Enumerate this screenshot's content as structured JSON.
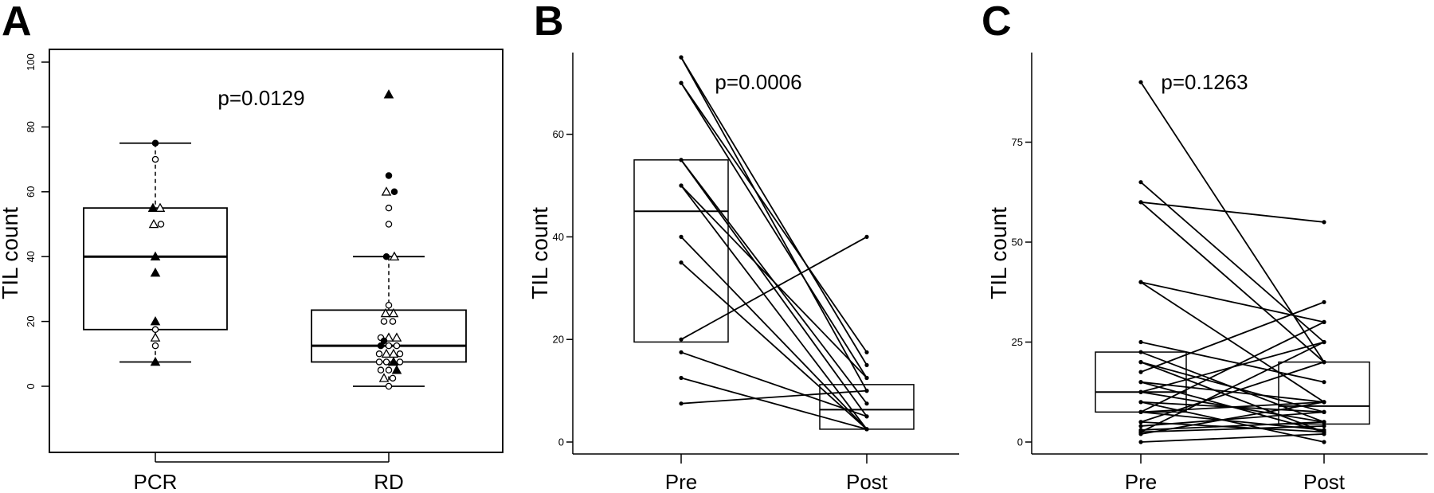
{
  "chart_data": [
    {
      "panel": "A",
      "type": "box",
      "ylabel": "TIL count",
      "ylim": [
        0,
        100
      ],
      "yticks": [
        "0",
        "20",
        "40",
        "60",
        "80",
        "100"
      ],
      "categories": [
        "PCR",
        "RD"
      ],
      "annotation": "p=0.0129",
      "boxes": [
        {
          "name": "PCR",
          "whisker_low": 7.5,
          "q1": 17.5,
          "median": 40,
          "q3": 55,
          "whisker_high": 75
        },
        {
          "name": "RD",
          "whisker_low": 0,
          "q1": 7.5,
          "median": 12.5,
          "q3": 23.5,
          "whisker_high": 40
        }
      ],
      "points": [
        {
          "cat": 0,
          "y": 75,
          "shape": "circle",
          "filled": true,
          "dx": 0
        },
        {
          "cat": 0,
          "y": 70,
          "shape": "circle",
          "filled": false,
          "dx": 0
        },
        {
          "cat": 0,
          "y": 55,
          "shape": "triangle",
          "filled": true,
          "dx": -3
        },
        {
          "cat": 0,
          "y": 55,
          "shape": "triangle",
          "filled": false,
          "dx": 6
        },
        {
          "cat": 0,
          "y": 50,
          "shape": "triangle",
          "filled": false,
          "dx": -2
        },
        {
          "cat": 0,
          "y": 50,
          "shape": "circle",
          "filled": false,
          "dx": 7
        },
        {
          "cat": 0,
          "y": 40,
          "shape": "triangle",
          "filled": true,
          "dx": 0
        },
        {
          "cat": 0,
          "y": 35,
          "shape": "triangle",
          "filled": true,
          "dx": 0
        },
        {
          "cat": 0,
          "y": 20,
          "shape": "triangle",
          "filled": true,
          "dx": 0
        },
        {
          "cat": 0,
          "y": 17.5,
          "shape": "circle",
          "filled": false,
          "dx": 0
        },
        {
          "cat": 0,
          "y": 15,
          "shape": "triangle",
          "filled": false,
          "dx": 0
        },
        {
          "cat": 0,
          "y": 12.5,
          "shape": "circle",
          "filled": false,
          "dx": 0
        },
        {
          "cat": 0,
          "y": 7.5,
          "shape": "triangle",
          "filled": true,
          "dx": 0
        },
        {
          "cat": 1,
          "y": 90,
          "shape": "triangle",
          "filled": true,
          "dx": 0
        },
        {
          "cat": 1,
          "y": 65,
          "shape": "circle",
          "filled": true,
          "dx": 0
        },
        {
          "cat": 1,
          "y": 60,
          "shape": "triangle",
          "filled": false,
          "dx": -3
        },
        {
          "cat": 1,
          "y": 60,
          "shape": "circle",
          "filled": true,
          "dx": 7
        },
        {
          "cat": 1,
          "y": 55,
          "shape": "circle",
          "filled": false,
          "dx": 0
        },
        {
          "cat": 1,
          "y": 50,
          "shape": "circle",
          "filled": false,
          "dx": 0
        },
        {
          "cat": 1,
          "y": 40,
          "shape": "circle",
          "filled": true,
          "dx": -3
        },
        {
          "cat": 1,
          "y": 40,
          "shape": "triangle",
          "filled": false,
          "dx": 7
        },
        {
          "cat": 1,
          "y": 25,
          "shape": "circle",
          "filled": false,
          "dx": 0
        },
        {
          "cat": 1,
          "y": 22.5,
          "shape": "triangle",
          "filled": false,
          "dx": -4
        },
        {
          "cat": 1,
          "y": 22.5,
          "shape": "triangle",
          "filled": false,
          "dx": 6
        },
        {
          "cat": 1,
          "y": 20,
          "shape": "circle",
          "filled": false,
          "dx": -6
        },
        {
          "cat": 1,
          "y": 20,
          "shape": "circle",
          "filled": false,
          "dx": 5
        },
        {
          "cat": 1,
          "y": 15,
          "shape": "circle",
          "filled": false,
          "dx": -10
        },
        {
          "cat": 1,
          "y": 15,
          "shape": "triangle",
          "filled": false,
          "dx": 0
        },
        {
          "cat": 1,
          "y": 15,
          "shape": "triangle",
          "filled": false,
          "dx": 10
        },
        {
          "cat": 1,
          "y": 14,
          "shape": "circle",
          "filled": true,
          "dx": -6
        },
        {
          "cat": 1,
          "y": 12.5,
          "shape": "circle",
          "filled": true,
          "dx": -10
        },
        {
          "cat": 1,
          "y": 12.5,
          "shape": "circle",
          "filled": false,
          "dx": 0
        },
        {
          "cat": 1,
          "y": 12.5,
          "shape": "circle",
          "filled": false,
          "dx": 10
        },
        {
          "cat": 1,
          "y": 10,
          "shape": "circle",
          "filled": false,
          "dx": -12
        },
        {
          "cat": 1,
          "y": 10,
          "shape": "triangle",
          "filled": false,
          "dx": -3
        },
        {
          "cat": 1,
          "y": 10,
          "shape": "triangle",
          "filled": false,
          "dx": 6
        },
        {
          "cat": 1,
          "y": 10,
          "shape": "circle",
          "filled": false,
          "dx": 14
        },
        {
          "cat": 1,
          "y": 7.5,
          "shape": "circle",
          "filled": false,
          "dx": -12
        },
        {
          "cat": 1,
          "y": 7.5,
          "shape": "circle",
          "filled": false,
          "dx": -3
        },
        {
          "cat": 1,
          "y": 7.5,
          "shape": "triangle",
          "filled": true,
          "dx": 6
        },
        {
          "cat": 1,
          "y": 7.5,
          "shape": "circle",
          "filled": false,
          "dx": 14
        },
        {
          "cat": 1,
          "y": 5,
          "shape": "circle",
          "filled": false,
          "dx": -10
        },
        {
          "cat": 1,
          "y": 5,
          "shape": "circle",
          "filled": false,
          "dx": 0
        },
        {
          "cat": 1,
          "y": 5,
          "shape": "triangle",
          "filled": true,
          "dx": 10
        },
        {
          "cat": 1,
          "y": 2.5,
          "shape": "triangle",
          "filled": false,
          "dx": -6
        },
        {
          "cat": 1,
          "y": 2.5,
          "shape": "circle",
          "filled": false,
          "dx": 5
        },
        {
          "cat": 1,
          "y": 0,
          "shape": "circle",
          "filled": false,
          "dx": 0
        }
      ]
    },
    {
      "panel": "B",
      "type": "paired_box",
      "ylabel": "TIL count",
      "ylim": [
        0,
        72
      ],
      "yticks": [
        "0",
        "20",
        "40",
        "60"
      ],
      "categories": [
        "Pre",
        "Post"
      ],
      "annotation": "p=0.0006",
      "boxes": [
        {
          "name": "Pre",
          "q1": 19.5,
          "median": 45,
          "q3": 55
        },
        {
          "name": "Post",
          "q1": 2.5,
          "median": 6.3,
          "q3": 11.2
        }
      ],
      "pairs": [
        [
          75,
          15
        ],
        [
          75,
          10
        ],
        [
          70,
          17.5
        ],
        [
          70,
          12.5
        ],
        [
          55,
          7.5
        ],
        [
          55,
          5
        ],
        [
          50,
          12.5
        ],
        [
          50,
          2.5
        ],
        [
          40,
          2.5
        ],
        [
          35,
          2.5
        ],
        [
          20,
          40
        ],
        [
          17.5,
          5
        ],
        [
          12.5,
          2.5
        ],
        [
          7.5,
          10
        ]
      ]
    },
    {
      "panel": "C",
      "type": "paired_box",
      "ylabel": "TIL count",
      "ylim": [
        0,
        90
      ],
      "yticks": [
        "0",
        "25",
        "50",
        "75"
      ],
      "categories": [
        "Pre",
        "Post"
      ],
      "annotation": "p=0.1263",
      "boxes": [
        {
          "name": "Pre",
          "q1": 7.5,
          "median": 12.5,
          "q3": 22.5
        },
        {
          "name": "Post",
          "q1": 4.5,
          "median": 9,
          "q3": 20
        }
      ],
      "pairs": [
        [
          90,
          20
        ],
        [
          65,
          25
        ],
        [
          60,
          55
        ],
        [
          60,
          20
        ],
        [
          40,
          30
        ],
        [
          40,
          10
        ],
        [
          25,
          15
        ],
        [
          22.5,
          5
        ],
        [
          20,
          7.5
        ],
        [
          20,
          2.5
        ],
        [
          17.5,
          35
        ],
        [
          15,
          10
        ],
        [
          15,
          2.5
        ],
        [
          12.5,
          25
        ],
        [
          12.5,
          5
        ],
        [
          10,
          7.5
        ],
        [
          10,
          0
        ],
        [
          7.5,
          30
        ],
        [
          7.5,
          3
        ],
        [
          7.5,
          10
        ],
        [
          5,
          2.5
        ],
        [
          5,
          20
        ],
        [
          4,
          7.5
        ],
        [
          3,
          5
        ],
        [
          2.5,
          25
        ],
        [
          2.5,
          4
        ],
        [
          2,
          10
        ],
        [
          0,
          2
        ]
      ]
    }
  ]
}
